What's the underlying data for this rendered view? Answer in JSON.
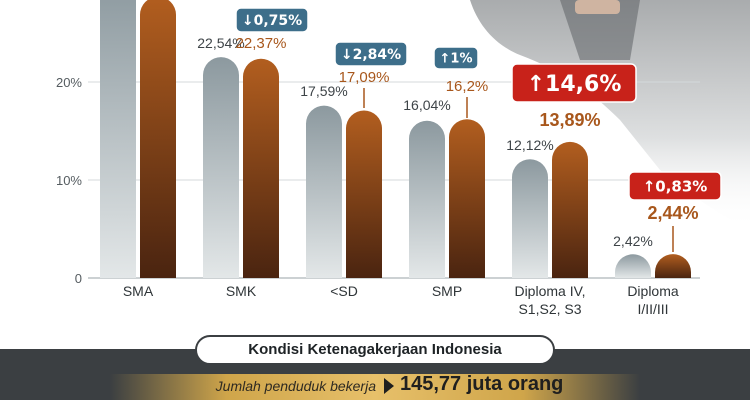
{
  "chart_data": {
    "type": "bar",
    "categories": [
      "SMA",
      "SMK",
      "<SD",
      "SMP",
      "Diploma IV,\nS1,S2, S3",
      "Diploma\nI/II/III"
    ],
    "series": [
      {
        "values": [
          30.2,
          22.54,
          17.59,
          16.04,
          12.12,
          2.42
        ],
        "labels": [
          "",
          "22,54%",
          "17,59%",
          "16,04%",
          "12,12%",
          "2,42%"
        ]
      },
      {
        "values": [
          28.7,
          22.37,
          17.09,
          16.2,
          13.89,
          2.44
        ],
        "labels": [
          "",
          "22,37%",
          "17,09%",
          "16,2%",
          "13,89%",
          "2,44%"
        ]
      }
    ],
    "changes": [
      {
        "index": 1,
        "direction": "down",
        "text": "0,75%",
        "style": "blue"
      },
      {
        "index": 2,
        "direction": "down",
        "text": "2,84%",
        "style": "blue"
      },
      {
        "index": 3,
        "direction": "up",
        "text": "1%",
        "style": "blue"
      },
      {
        "index": 4,
        "direction": "up",
        "text": "14,6%",
        "style": "red"
      },
      {
        "index": 5,
        "direction": "up",
        "text": "0,83%",
        "style": "red"
      }
    ],
    "yticks": [
      {
        "value": 0,
        "label": "0"
      },
      {
        "value": 10,
        "label": "10%"
      },
      {
        "value": 20,
        "label": "20%"
      }
    ],
    "ylim": [
      0,
      30
    ],
    "grid": true
  },
  "footer": {
    "title": "Kondisi Ketenagakerjaan Indonesia",
    "jumlah_label": "Jumlah penduduk bekerja",
    "jumlah_value": "145,77 juta orang"
  },
  "colors": {
    "bar_gray": "#8c999f",
    "bar_orange": "#a2531b",
    "badge_blue": "#3d6e8a",
    "badge_red": "#c8221a",
    "label_orange": "#a8571c",
    "label_gray": "#3e4448"
  }
}
